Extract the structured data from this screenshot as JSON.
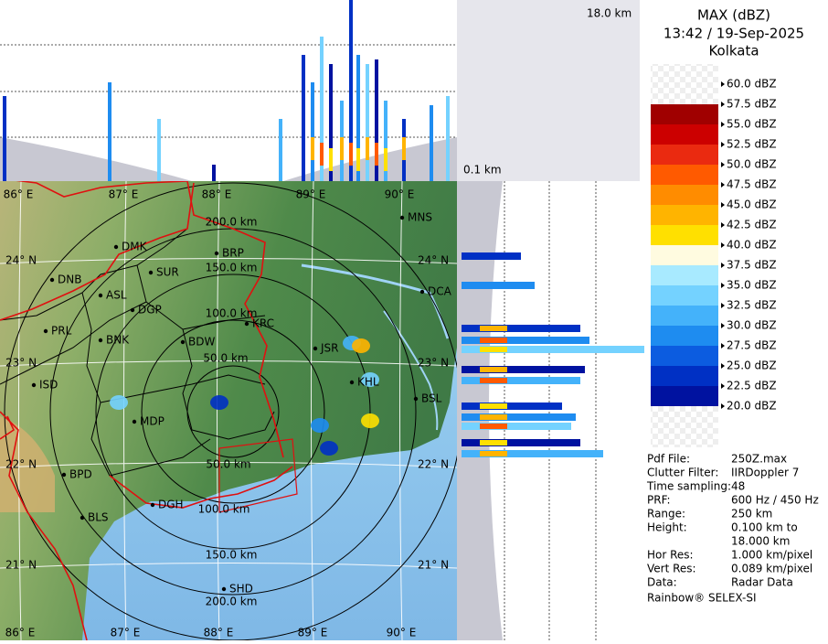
{
  "header": {
    "title": "MAX (dBZ)",
    "time": "13:42 / 19-Sep-2025",
    "station": "Kolkata"
  },
  "height_labels": {
    "top": "18.0 km",
    "bottom": "0.1 km"
  },
  "legend": {
    "levels": [
      {
        "label": "60.0 dBZ"
      },
      {
        "label": "57.5 dBZ",
        "color": "#a00000"
      },
      {
        "label": "55.0 dBZ",
        "color": "#cc0000"
      },
      {
        "label": "52.5 dBZ",
        "color": "#ea2a10"
      },
      {
        "label": "50.0 dBZ",
        "color": "#ff5a00"
      },
      {
        "label": "47.5 dBZ",
        "color": "#ff8c00"
      },
      {
        "label": "45.0 dBZ",
        "color": "#ffb400"
      },
      {
        "label": "42.5 dBZ",
        "color": "#ffe000"
      },
      {
        "label": "40.0 dBZ",
        "color": "#fffbe0"
      },
      {
        "label": "37.5 dBZ",
        "color": "#a8eaff"
      },
      {
        "label": "35.0 dBZ",
        "color": "#74d2ff"
      },
      {
        "label": "32.5 dBZ",
        "color": "#44b2fa"
      },
      {
        "label": "30.0 dBZ",
        "color": "#1e8cf0"
      },
      {
        "label": "27.5 dBZ",
        "color": "#0c5ce0"
      },
      {
        "label": "25.0 dBZ",
        "color": "#0030c4"
      },
      {
        "label": "22.5 dBZ",
        "color": "#0012a0"
      },
      {
        "label": "20.0 dBZ"
      }
    ]
  },
  "info": {
    "rows": [
      {
        "key": "Pdf File:",
        "value": [
          "250Z.max"
        ]
      },
      {
        "key": "Clutter Filter:",
        "value": [
          "IIRDoppler 7"
        ]
      },
      {
        "key": "Time sampling:",
        "value": [
          "48"
        ]
      },
      {
        "key": "PRF:",
        "value": [
          "600 Hz / 450 Hz"
        ]
      },
      {
        "key": "Range:",
        "value": [
          "250 km"
        ]
      },
      {
        "key": "Height:",
        "value": [
          "0.100 km to",
          "18.000 km"
        ]
      },
      {
        "key": "Hor Res:",
        "value": [
          "1.000 km/pixel"
        ]
      },
      {
        "key": "Vert Res:",
        "value": [
          "0.089 km/pixel"
        ]
      },
      {
        "key": "Data:",
        "value": [
          "Radar Data"
        ]
      }
    ],
    "footer": "Rainbow® SELEX-SI"
  },
  "map": {
    "lon_labels_top": [
      "86° E",
      "87° E",
      "88° E",
      "89° E",
      "90° E"
    ],
    "lon_labels_bottom": [
      "86° E",
      "87° E",
      "88° E",
      "89° E",
      "90° E"
    ],
    "lat_labels_left": [
      "24° N",
      "23° N",
      "22° N",
      "21° N"
    ],
    "lat_labels_right": [
      "24° N",
      "23° N",
      "22° N",
      "21° N"
    ],
    "range_labels": [
      "200.0 km",
      "150.0 km",
      "100.0 km",
      "50.0 km",
      "50.0 km",
      "100.0 km",
      "150.0 km",
      "200.0 km"
    ],
    "sites": [
      "MNS",
      "DMK",
      "BRP",
      "SUR",
      "DNB",
      "ASL",
      "DCA",
      "DGP",
      "KRC",
      "PRL",
      "BNK",
      "BDW",
      "JSR",
      "KHL",
      "ISD",
      "BSL",
      "MDP",
      "BPD",
      "DGH",
      "BLS",
      "SHD"
    ]
  }
}
